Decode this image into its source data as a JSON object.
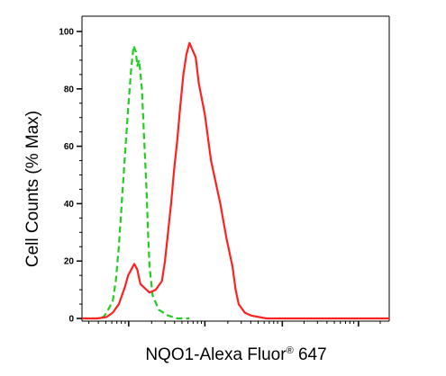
{
  "chart_data": {
    "type": "line",
    "xlabel_main": "NQO1-Alexa Fluor",
    "xlabel_sup": "®",
    "xlabel_tail": " 647",
    "ylabel": "Cell Counts (% Max)",
    "ylim": [
      0,
      100
    ],
    "xlim": [
      0,
      1
    ],
    "x_scale": "log",
    "grid": false,
    "legend": "none",
    "yticks": [
      0,
      20,
      40,
      60,
      80,
      100
    ],
    "ytick_labels": [
      "0",
      "20",
      "40",
      "60",
      "80",
      "100"
    ],
    "x_ticks_major": [
      0.152,
      0.4,
      0.652,
      0.9
    ],
    "series": [
      {
        "style": "dashed",
        "color": "#22cc22",
        "x": [
          0.0,
          0.02,
          0.05,
          0.07,
          0.08,
          0.1,
          0.11,
          0.12,
          0.13,
          0.14,
          0.15,
          0.16,
          0.168,
          0.175,
          0.18,
          0.186,
          0.195,
          0.2,
          0.21,
          0.215,
          0.22,
          0.23,
          0.25,
          0.28,
          0.31,
          0.35
        ],
        "y": [
          0,
          0,
          0,
          0.5,
          2,
          6,
          13,
          25,
          41,
          57,
          73,
          87,
          95,
          93,
          88,
          90,
          80,
          68,
          45,
          30,
          18,
          8,
          3,
          1,
          0,
          0
        ]
      },
      {
        "style": "solid",
        "color": "#ff2020",
        "x": [
          0.0,
          0.05,
          0.08,
          0.1,
          0.12,
          0.14,
          0.15,
          0.16,
          0.17,
          0.18,
          0.19,
          0.2,
          0.22,
          0.24,
          0.26,
          0.27,
          0.28,
          0.29,
          0.3,
          0.31,
          0.32,
          0.33,
          0.34,
          0.35,
          0.37,
          0.38,
          0.4,
          0.41,
          0.42,
          0.45,
          0.47,
          0.49,
          0.5,
          0.51,
          0.53,
          0.55,
          0.6,
          0.7,
          1.0
        ],
        "y": [
          0,
          0,
          0.5,
          2,
          5,
          11,
          15,
          17,
          19,
          17,
          12,
          11,
          9,
          10,
          13,
          20,
          30,
          40,
          52,
          62,
          74,
          85,
          92,
          96,
          91,
          82,
          71,
          63,
          55,
          40,
          28,
          18,
          10,
          5,
          2,
          1,
          0,
          0,
          0
        ]
      }
    ]
  }
}
